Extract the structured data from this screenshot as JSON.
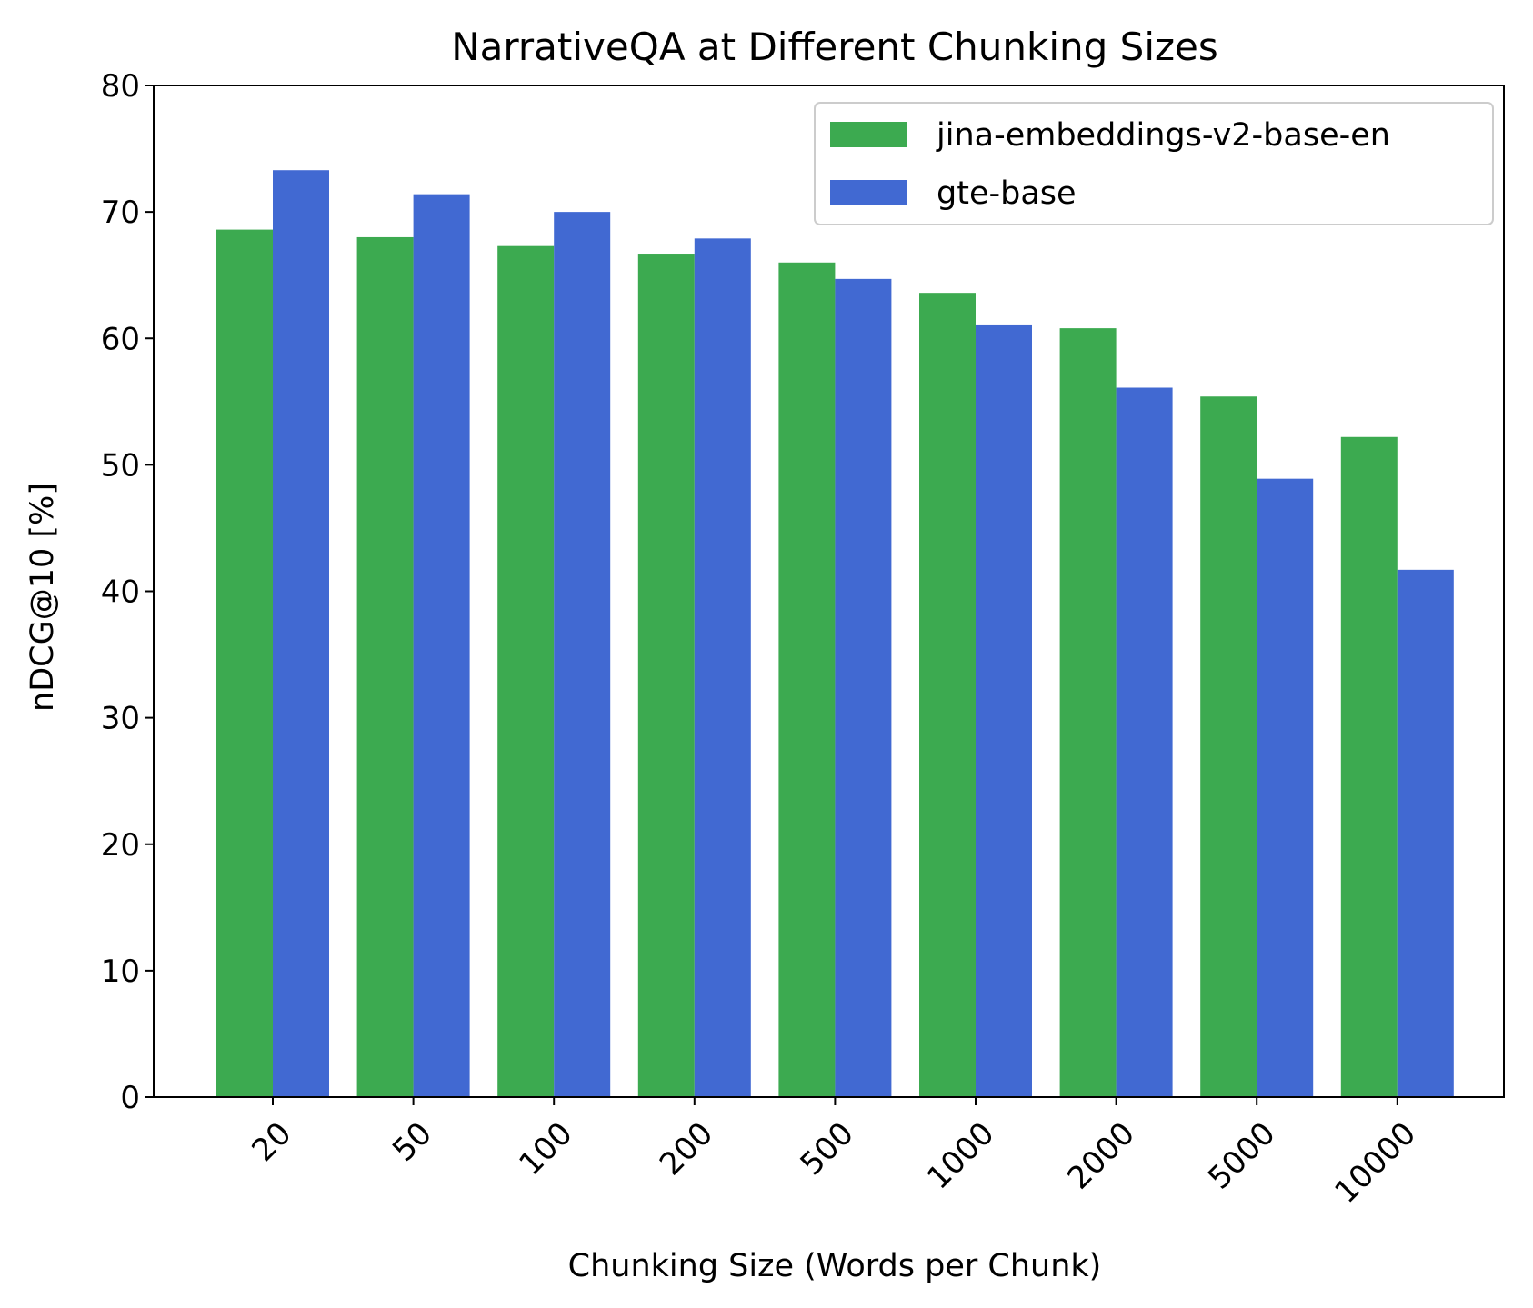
{
  "chart_data": {
    "type": "bar",
    "title": "NarrativeQA at Different Chunking Sizes",
    "xlabel": "Chunking Size (Words per Chunk)",
    "ylabel": "nDCG@10 [%]",
    "categories": [
      "20",
      "50",
      "100",
      "200",
      "500",
      "1000",
      "2000",
      "5000",
      "10000"
    ],
    "series": [
      {
        "name": "jina-embeddings-v2-base-en",
        "color": "#3caa50",
        "values": [
          68.6,
          68.0,
          67.3,
          66.7,
          66.0,
          63.6,
          60.8,
          55.4,
          52.2
        ]
      },
      {
        "name": "gte-base",
        "color": "#4169d2",
        "values": [
          73.3,
          71.4,
          70.0,
          67.9,
          64.7,
          61.1,
          56.1,
          48.9,
          41.7
        ]
      }
    ],
    "ylim": [
      0,
      80
    ],
    "yticks": [
      0,
      10,
      20,
      30,
      40,
      50,
      60,
      70,
      80
    ],
    "grid": false,
    "legend_position": "top-right"
  }
}
